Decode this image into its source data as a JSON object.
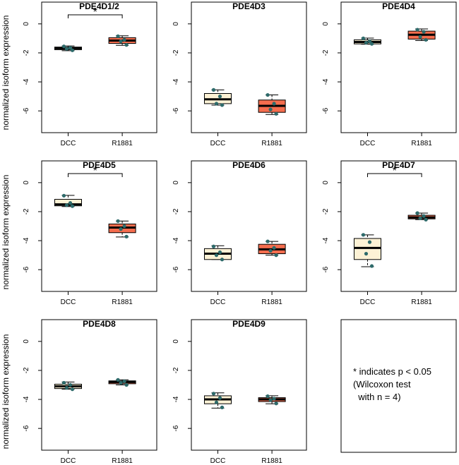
{
  "ylabel": "normalized isoform expression",
  "note_lines": [
    "* indicates p < 0.05",
    "(Wilcoxon test",
    "  with n = 4)"
  ],
  "colors": {
    "DCC": "#fdf2d5",
    "R1881": "#f46d4e",
    "point": "#2e6b6b"
  },
  "chart_data": [
    {
      "type": "box",
      "title": "PDE4D1/2",
      "categories": [
        "DCC",
        "R1881"
      ],
      "ylim": [
        -7.5,
        1.5
      ],
      "yticks": [
        0,
        -2,
        -4,
        -6
      ],
      "significant": true,
      "groups": [
        {
          "name": "DCC",
          "min": -1.85,
          "q1": -1.78,
          "median": -1.68,
          "q3": -1.6,
          "max": -1.52,
          "points": [
            -1.55,
            -1.65,
            -1.72,
            -1.82
          ]
        },
        {
          "name": "R1881",
          "min": -1.48,
          "q1": -1.35,
          "median": -1.15,
          "q3": -0.95,
          "max": -0.82,
          "points": [
            -0.85,
            -1.1,
            -1.2,
            -1.45
          ]
        }
      ]
    },
    {
      "type": "box",
      "title": "PDE4D3",
      "categories": [
        "DCC",
        "R1881"
      ],
      "ylim": [
        -7.5,
        1.5
      ],
      "yticks": [
        0,
        -2,
        -4,
        -6
      ],
      "significant": false,
      "groups": [
        {
          "name": "DCC",
          "min": -5.6,
          "q1": -5.5,
          "median": -5.2,
          "q3": -4.8,
          "max": -4.55,
          "points": [
            -4.55,
            -5.0,
            -5.5,
            -5.6
          ]
        },
        {
          "name": "R1881",
          "min": -6.25,
          "q1": -6.1,
          "median": -5.65,
          "q3": -5.25,
          "max": -4.9,
          "points": [
            -4.9,
            -5.5,
            -5.9,
            -6.2
          ]
        }
      ]
    },
    {
      "type": "box",
      "title": "PDE4D4",
      "categories": [
        "DCC",
        "R1881"
      ],
      "ylim": [
        -7.5,
        1.5
      ],
      "yticks": [
        0,
        -2,
        -4,
        -6
      ],
      "significant": false,
      "groups": [
        {
          "name": "DCC",
          "min": -1.4,
          "q1": -1.38,
          "median": -1.25,
          "q3": -1.1,
          "max": -0.98,
          "points": [
            -1.0,
            -1.2,
            -1.3,
            -1.38
          ]
        },
        {
          "name": "R1881",
          "min": -1.15,
          "q1": -1.05,
          "median": -0.75,
          "q3": -0.5,
          "max": -0.35,
          "points": [
            -0.4,
            -0.55,
            -0.9,
            -1.1
          ]
        }
      ]
    },
    {
      "type": "box",
      "title": "PDE4D5",
      "categories": [
        "DCC",
        "R1881"
      ],
      "ylim": [
        -7.5,
        1.5
      ],
      "yticks": [
        0,
        -2,
        -4,
        -6
      ],
      "significant": true,
      "groups": [
        {
          "name": "DCC",
          "min": -1.65,
          "q1": -1.6,
          "median": -1.5,
          "q3": -1.15,
          "max": -0.88,
          "points": [
            -0.9,
            -1.4,
            -1.55,
            -1.62
          ]
        },
        {
          "name": "R1881",
          "min": -3.75,
          "q1": -3.45,
          "median": -3.1,
          "q3": -2.85,
          "max": -2.65,
          "points": [
            -2.65,
            -3.0,
            -3.2,
            -3.72
          ]
        }
      ]
    },
    {
      "type": "box",
      "title": "PDE4D6",
      "categories": [
        "DCC",
        "R1881"
      ],
      "ylim": [
        -7.5,
        1.5
      ],
      "yticks": [
        0,
        -2,
        -4,
        -6
      ],
      "significant": false,
      "groups": [
        {
          "name": "DCC",
          "min": -5.3,
          "q1": -5.3,
          "median": -4.9,
          "q3": -4.55,
          "max": -4.35,
          "points": [
            -4.4,
            -4.8,
            -5.0,
            -5.3
          ]
        },
        {
          "name": "R1881",
          "min": -5.0,
          "q1": -4.9,
          "median": -4.6,
          "q3": -4.25,
          "max": -4.05,
          "points": [
            -4.05,
            -4.5,
            -4.7,
            -5.0
          ]
        }
      ]
    },
    {
      "type": "box",
      "title": "PDE4D7",
      "categories": [
        "DCC",
        "R1881"
      ],
      "ylim": [
        -7.5,
        1.5
      ],
      "yticks": [
        0,
        -2,
        -4,
        -6
      ],
      "significant": true,
      "groups": [
        {
          "name": "DCC",
          "min": -5.8,
          "q1": -5.3,
          "median": -4.5,
          "q3": -3.85,
          "max": -3.6,
          "points": [
            -3.6,
            -4.1,
            -4.9,
            -5.75
          ]
        },
        {
          "name": "R1881",
          "min": -2.55,
          "q1": -2.5,
          "median": -2.4,
          "q3": -2.25,
          "max": -2.1,
          "points": [
            -2.1,
            -2.3,
            -2.45,
            -2.55
          ]
        }
      ]
    },
    {
      "type": "box",
      "title": "PDE4D8",
      "categories": [
        "DCC",
        "R1881"
      ],
      "ylim": [
        -7.5,
        1.5
      ],
      "yticks": [
        0,
        -2,
        -4,
        -6
      ],
      "significant": false,
      "groups": [
        {
          "name": "DCC",
          "min": -3.3,
          "q1": -3.25,
          "median": -3.1,
          "q3": -2.95,
          "max": -2.8,
          "points": [
            -2.85,
            -3.0,
            -3.2,
            -3.3
          ]
        },
        {
          "name": "R1881",
          "min": -3.0,
          "q1": -2.92,
          "median": -2.8,
          "q3": -2.72,
          "max": -2.65,
          "points": [
            -2.65,
            -2.75,
            -2.85,
            -3.0
          ]
        }
      ]
    },
    {
      "type": "box",
      "title": "PDE4D9",
      "categories": [
        "DCC",
        "R1881"
      ],
      "ylim": [
        -7.5,
        1.5
      ],
      "yticks": [
        0,
        -2,
        -4,
        -6
      ],
      "significant": false,
      "groups": [
        {
          "name": "DCC",
          "min": -4.6,
          "q1": -4.3,
          "median": -4.0,
          "q3": -3.75,
          "max": -3.55,
          "points": [
            -3.6,
            -3.9,
            -4.2,
            -4.55
          ]
        },
        {
          "name": "R1881",
          "min": -4.3,
          "q1": -4.15,
          "median": -4.0,
          "q3": -3.88,
          "max": -3.75,
          "points": [
            -3.78,
            -3.95,
            -4.05,
            -4.28
          ]
        }
      ]
    }
  ]
}
